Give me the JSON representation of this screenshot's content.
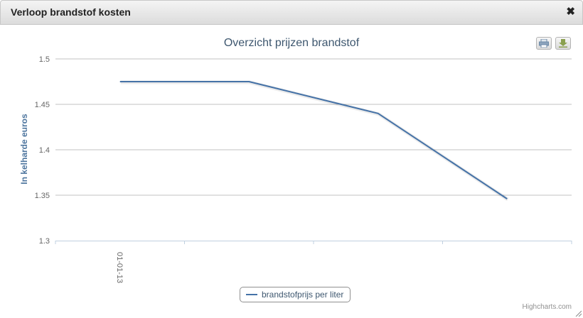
{
  "dialog": {
    "title": "Verloop brandstof kosten",
    "close_glyph": "✖"
  },
  "toolbar": {
    "print_icon": "printer-icon",
    "download_icon": "download-icon"
  },
  "credits": "Highcharts.com",
  "chart_data": {
    "type": "line",
    "title": "Overzicht prijzen brandstof",
    "ylabel": "In kelharde euros",
    "xlabel": "",
    "ylim": [
      1.3,
      1.5
    ],
    "yticks": [
      "1.3",
      "1.35",
      "1.4",
      "1.45",
      "1.5"
    ],
    "x_tick_labels": [
      "01-01-13"
    ],
    "x": [
      0,
      1,
      2,
      3
    ],
    "series": [
      {
        "name": "brandstofprijs per liter",
        "color": "#4572a7",
        "values": [
          1.475,
          1.475,
          1.44,
          1.346
        ]
      }
    ],
    "grid": true,
    "legend": "bottom-center"
  }
}
